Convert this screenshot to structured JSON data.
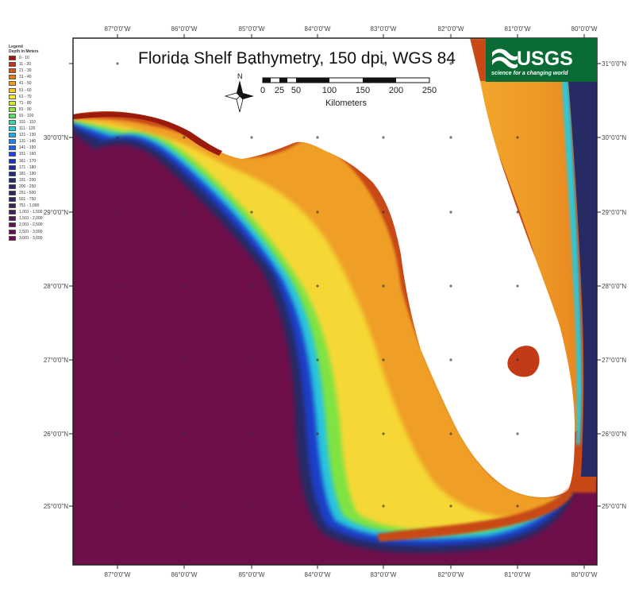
{
  "map": {
    "title": "Florida Shelf Bathymetry, 150 dpi, WGS 84",
    "north_label": "N",
    "scale_labels": [
      "0",
      "25",
      "50",
      "100",
      "150",
      "200",
      "250"
    ],
    "scale_units": "Kilometers",
    "logo_text": "USGS",
    "logo_tagline": "science for a changing world",
    "colors": {
      "land": "#ffffff",
      "deep_water": "#6e0f4a",
      "frame": "#222222"
    }
  },
  "axes": {
    "lon_labels": [
      "87°0'0\"W",
      "86°0'0\"W",
      "85°0'0\"W",
      "84°0'0\"W",
      "83°0'0\"W",
      "82°0'0\"W",
      "81°0'0\"W",
      "80°0'0\"W"
    ],
    "lat_labels": [
      "31°0'0\"N",
      "30°0'0\"N",
      "29°0'0\"N",
      "28°0'0\"N",
      "27°0'0\"N",
      "26°0'0\"N",
      "25°0'0\"N"
    ]
  },
  "legend": {
    "title_line1": "Legend",
    "title_line2": "Depth in Meters",
    "items": [
      {
        "label": "0 - 10",
        "color": "#9b1a0e"
      },
      {
        "label": "11 - 20",
        "color": "#b8381a"
      },
      {
        "label": "21 - 30",
        "color": "#cc5a1c"
      },
      {
        "label": "31 - 40",
        "color": "#de7d1f"
      },
      {
        "label": "41 - 50",
        "color": "#eea025"
      },
      {
        "label": "51 - 60",
        "color": "#f8c630"
      },
      {
        "label": "61 - 70",
        "color": "#f5e63a"
      },
      {
        "label": "71 - 80",
        "color": "#c7ef3c"
      },
      {
        "label": "81 - 90",
        "color": "#8fe63f"
      },
      {
        "label": "91 - 100",
        "color": "#5ddc6a"
      },
      {
        "label": "101 - 110",
        "color": "#3dd6a8"
      },
      {
        "label": "111 - 120",
        "color": "#2fc9dc"
      },
      {
        "label": "121 - 130",
        "color": "#25a9ee"
      },
      {
        "label": "131 - 140",
        "color": "#1f86ee"
      },
      {
        "label": "141 - 150",
        "color": "#1c63ea"
      },
      {
        "label": "151 - 160",
        "color": "#1a46dc"
      },
      {
        "label": "161 - 170",
        "color": "#1a33bc"
      },
      {
        "label": "171 - 180",
        "color": "#1d2a9c"
      },
      {
        "label": "181 - 190",
        "color": "#20297e"
      },
      {
        "label": "191 - 200",
        "color": "#232a6b"
      },
      {
        "label": "200 - 250",
        "color": "#272a62"
      },
      {
        "label": "251 - 500",
        "color": "#2b2959"
      },
      {
        "label": "501 - 750",
        "color": "#322656"
      },
      {
        "label": "751 - 1,000",
        "color": "#3b2355"
      },
      {
        "label": "1,001 - 1,500",
        "color": "#452054"
      },
      {
        "label": "1,501 - 2,000",
        "color": "#4f1c52"
      },
      {
        "label": "2,001 - 2,500",
        "color": "#5a1850"
      },
      {
        "label": "2,501 - 3,000",
        "color": "#64134d"
      },
      {
        "label": "3,001 - 3,600",
        "color": "#6e0f4a"
      }
    ]
  }
}
